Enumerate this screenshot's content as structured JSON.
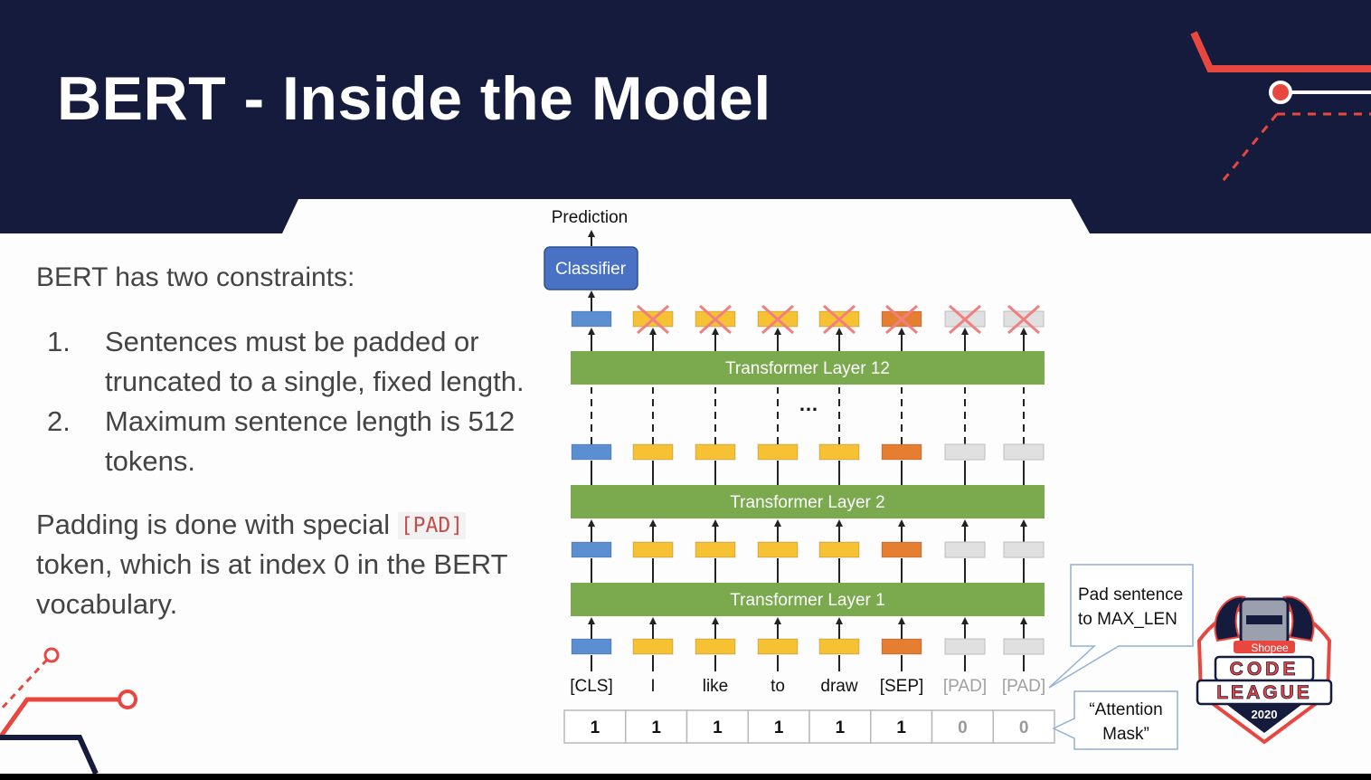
{
  "title": "BERT - Inside the Model",
  "intro": "BERT has two constraints:",
  "list": [
    {
      "num": "1.",
      "lines": [
        "Sentences must be padded or",
        "truncated to a single, fixed length."
      ]
    },
    {
      "num": "2.",
      "lines": [
        "Maximum sentence length is 512",
        "tokens."
      ]
    }
  ],
  "padding": {
    "prefix": "Padding is done with special",
    "code": "[PAD]",
    "line2": "token, which is at index 0 in the BERT",
    "line3": "vocabulary."
  },
  "diagram": {
    "prediction": "Prediction",
    "classifier": "Classifier",
    "layers": [
      "Transformer Layer 12",
      "Transformer Layer 2",
      "Transformer Layer 1"
    ],
    "ellipsis": "…",
    "tokens": [
      "[CLS]",
      "I",
      "like",
      "to",
      "draw",
      "[SEP]",
      "[PAD]",
      "[PAD]"
    ],
    "mask": [
      "1",
      "1",
      "1",
      "1",
      "1",
      "1",
      "0",
      "0"
    ],
    "callout_pad": [
      "Pad sentence",
      "to MAX_LEN"
    ],
    "callout_mask": [
      "“Attention",
      "Mask”"
    ]
  },
  "logo": {
    "brand": "Shopee",
    "line1": "CODE",
    "line2": "LEAGUE",
    "year": "2020"
  },
  "colors": {
    "header": "#151b3d",
    "accent": "#e8473f",
    "layer": "#7aa94e",
    "classifier": "#4a72c4",
    "cls": "#5b8fd2",
    "word": "#f6c233",
    "sep": "#e67e32",
    "pad": "#e0e0e0",
    "cross": "#f08080"
  }
}
